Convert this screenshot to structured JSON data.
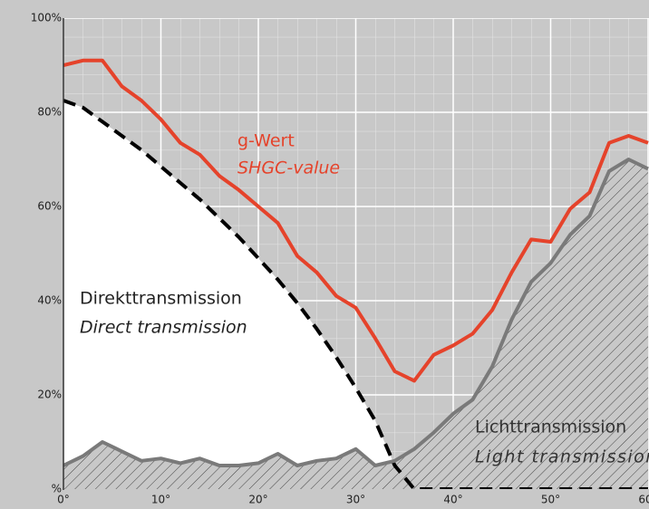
{
  "chart_data": {
    "type": "line",
    "x": [
      0,
      2,
      4,
      6,
      8,
      10,
      12,
      14,
      16,
      18,
      20,
      22,
      24,
      26,
      28,
      30,
      32,
      34,
      36,
      38,
      40,
      42,
      44,
      46,
      48,
      50,
      52,
      54,
      56,
      58,
      60
    ],
    "series": [
      {
        "name": "g-Wert",
        "name_en": "SHGC-value",
        "color": "#e5432b",
        "style": "solid",
        "values": [
          90,
          91,
          91,
          85.5,
          82.5,
          78.5,
          73.5,
          71,
          66.5,
          63.5,
          60,
          56.5,
          49.5,
          46,
          41,
          38.5,
          32,
          25,
          23,
          28.5,
          30.5,
          33,
          38,
          46,
          53,
          52.5,
          59.5,
          63,
          73.5,
          75,
          73.5
        ]
      },
      {
        "name": "Direkttransmission",
        "name_en": "Direct transmission",
        "color": "#000000",
        "style": "dashed",
        "fill": "#ffffff",
        "values": [
          82.5,
          81,
          78,
          75,
          72,
          68.5,
          65,
          61.5,
          57.5,
          53.5,
          49,
          44.5,
          39.5,
          34,
          28,
          21.5,
          14.5,
          5,
          0,
          0,
          0,
          0,
          0,
          0,
          0,
          0,
          0,
          0,
          0,
          0,
          0
        ]
      },
      {
        "name": "Lichttransmission",
        "name_en": "Light transmission",
        "color": "#7a7a7a",
        "style": "solid",
        "fill": "hatch",
        "values": [
          5,
          7,
          10,
          8,
          6,
          6.5,
          5.5,
          6.5,
          5,
          5,
          5.5,
          7.5,
          5,
          6,
          6.5,
          8.5,
          5,
          6,
          8.5,
          12,
          16,
          19,
          26,
          36,
          44,
          48,
          54,
          58,
          67.5,
          70,
          68
        ]
      }
    ],
    "xlim": [
      0,
      60
    ],
    "ylim": [
      0,
      100
    ],
    "xticks": [
      {
        "value": 0,
        "label": "0°"
      },
      {
        "value": 10,
        "label": "10°"
      },
      {
        "value": 20,
        "label": "20°"
      },
      {
        "value": 30,
        "label": "30°"
      },
      {
        "value": 40,
        "label": "40°"
      },
      {
        "value": 50,
        "label": "50°"
      },
      {
        "value": 60,
        "label": "60°"
      }
    ],
    "yticks": [
      {
        "value": 0,
        "label": "%"
      },
      {
        "value": 20,
        "label": "20%"
      },
      {
        "value": 40,
        "label": "40%"
      },
      {
        "value": 60,
        "label": "60%"
      },
      {
        "value": 80,
        "label": "80%"
      },
      {
        "value": 100,
        "label": "100%"
      }
    ],
    "grid": true
  }
}
